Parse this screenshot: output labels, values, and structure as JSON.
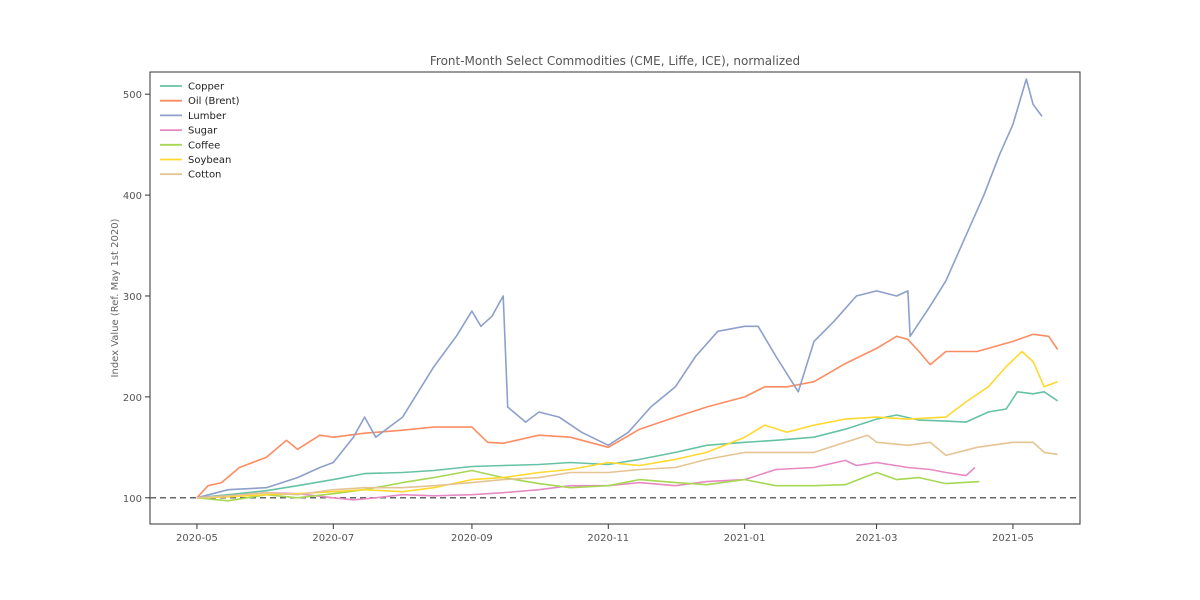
{
  "chart_data": {
    "type": "line",
    "title": "Front-Month Select Commodities (CME, Liffe, ICE), normalized",
    "xlabel": "",
    "ylabel": "Index Value (Ref. May 1st 2020)",
    "xlim": [
      "2020-04-10",
      "2021-05-31"
    ],
    "ylim": [
      74,
      522
    ],
    "x_ticks": [
      "2020-05-01",
      "2020-07-01",
      "2020-09-01",
      "2020-11-01",
      "2021-01-01",
      "2021-03-01",
      "2021-05-01"
    ],
    "x_tick_labels": [
      "2020-05",
      "2020-07",
      "2020-09",
      "2020-11",
      "2021-01",
      "2021-03",
      "2021-05"
    ],
    "y_ticks": [
      100,
      200,
      300,
      400,
      500
    ],
    "y_tick_labels": [
      "100",
      "200",
      "300",
      "400",
      "500"
    ],
    "reference_line": {
      "y": 100,
      "style": "dashed",
      "color": "#666666"
    },
    "legend": {
      "position": "top-left"
    },
    "grid": false,
    "series": [
      {
        "name": "Copper",
        "color": "#66c2a5",
        "points": [
          [
            "2020-05-01",
            100
          ],
          [
            "2020-05-15",
            103
          ],
          [
            "2020-06-01",
            107
          ],
          [
            "2020-06-15",
            112
          ],
          [
            "2020-07-01",
            118
          ],
          [
            "2020-07-15",
            124
          ],
          [
            "2020-08-01",
            125
          ],
          [
            "2020-08-15",
            127
          ],
          [
            "2020-09-01",
            131
          ],
          [
            "2020-09-15",
            132
          ],
          [
            "2020-10-01",
            133
          ],
          [
            "2020-10-15",
            135
          ],
          [
            "2020-11-01",
            133
          ],
          [
            "2020-11-15",
            138
          ],
          [
            "2020-12-01",
            145
          ],
          [
            "2020-12-15",
            152
          ],
          [
            "2021-01-01",
            155
          ],
          [
            "2021-01-15",
            157
          ],
          [
            "2021-02-01",
            160
          ],
          [
            "2021-02-15",
            168
          ],
          [
            "2021-03-01",
            178
          ],
          [
            "2021-03-10",
            182
          ],
          [
            "2021-03-20",
            177
          ],
          [
            "2021-04-01",
            176
          ],
          [
            "2021-04-10",
            175
          ],
          [
            "2021-04-20",
            185
          ],
          [
            "2021-04-28",
            188
          ],
          [
            "2021-05-03",
            205
          ],
          [
            "2021-05-10",
            203
          ],
          [
            "2021-05-15",
            205
          ],
          [
            "2021-05-21",
            196
          ]
        ]
      },
      {
        "name": "Oil (Brent)",
        "color": "#fc8d62",
        "points": [
          [
            "2020-05-01",
            100
          ],
          [
            "2020-05-06",
            112
          ],
          [
            "2020-05-12",
            115
          ],
          [
            "2020-05-20",
            130
          ],
          [
            "2020-06-01",
            140
          ],
          [
            "2020-06-10",
            157
          ],
          [
            "2020-06-15",
            148
          ],
          [
            "2020-06-25",
            162
          ],
          [
            "2020-07-01",
            160
          ],
          [
            "2020-07-15",
            164
          ],
          [
            "2020-08-01",
            167
          ],
          [
            "2020-08-15",
            170
          ],
          [
            "2020-09-01",
            170
          ],
          [
            "2020-09-08",
            155
          ],
          [
            "2020-09-15",
            154
          ],
          [
            "2020-10-01",
            162
          ],
          [
            "2020-10-15",
            160
          ],
          [
            "2020-11-01",
            150
          ],
          [
            "2020-11-15",
            168
          ],
          [
            "2020-12-01",
            180
          ],
          [
            "2020-12-15",
            190
          ],
          [
            "2021-01-01",
            200
          ],
          [
            "2021-01-10",
            210
          ],
          [
            "2021-01-20",
            210
          ],
          [
            "2021-02-01",
            215
          ],
          [
            "2021-02-15",
            233
          ],
          [
            "2021-03-01",
            248
          ],
          [
            "2021-03-10",
            260
          ],
          [
            "2021-03-15",
            257
          ],
          [
            "2021-03-20",
            245
          ],
          [
            "2021-03-25",
            232
          ],
          [
            "2021-04-01",
            245
          ],
          [
            "2021-04-15",
            245
          ],
          [
            "2021-05-01",
            255
          ],
          [
            "2021-05-10",
            262
          ],
          [
            "2021-05-17",
            260
          ],
          [
            "2021-05-21",
            247
          ]
        ]
      },
      {
        "name": "Lumber",
        "color": "#8da0cb",
        "points": [
          [
            "2020-05-01",
            100
          ],
          [
            "2020-05-15",
            108
          ],
          [
            "2020-06-01",
            110
          ],
          [
            "2020-06-15",
            120
          ],
          [
            "2020-06-25",
            130
          ],
          [
            "2020-07-01",
            135
          ],
          [
            "2020-07-10",
            160
          ],
          [
            "2020-07-15",
            180
          ],
          [
            "2020-07-20",
            160
          ],
          [
            "2020-08-01",
            180
          ],
          [
            "2020-08-15",
            230
          ],
          [
            "2020-08-25",
            260
          ],
          [
            "2020-09-01",
            285
          ],
          [
            "2020-09-05",
            270
          ],
          [
            "2020-09-10",
            280
          ],
          [
            "2020-09-15",
            300
          ],
          [
            "2020-09-17",
            190
          ],
          [
            "2020-09-25",
            175
          ],
          [
            "2020-10-01",
            185
          ],
          [
            "2020-10-10",
            180
          ],
          [
            "2020-10-20",
            165
          ],
          [
            "2020-11-01",
            152
          ],
          [
            "2020-11-10",
            165
          ],
          [
            "2020-11-20",
            190
          ],
          [
            "2020-12-01",
            210
          ],
          [
            "2020-12-10",
            240
          ],
          [
            "2020-12-20",
            265
          ],
          [
            "2021-01-01",
            270
          ],
          [
            "2021-01-07",
            270
          ],
          [
            "2021-01-15",
            240
          ],
          [
            "2021-01-25",
            205
          ],
          [
            "2021-02-01",
            255
          ],
          [
            "2021-02-10",
            275
          ],
          [
            "2021-02-20",
            300
          ],
          [
            "2021-03-01",
            305
          ],
          [
            "2021-03-10",
            300
          ],
          [
            "2021-03-15",
            305
          ],
          [
            "2021-03-16",
            260
          ],
          [
            "2021-03-25",
            290
          ],
          [
            "2021-04-01",
            315
          ],
          [
            "2021-04-10",
            360
          ],
          [
            "2021-04-18",
            400
          ],
          [
            "2021-04-25",
            440
          ],
          [
            "2021-05-01",
            470
          ],
          [
            "2021-05-07",
            515
          ],
          [
            "2021-05-10",
            490
          ],
          [
            "2021-05-14",
            478
          ]
        ]
      },
      {
        "name": "Sugar",
        "color": "#e78ac3",
        "points": [
          [
            "2020-05-01",
            100
          ],
          [
            "2020-05-15",
            102
          ],
          [
            "2020-06-01",
            105
          ],
          [
            "2020-06-15",
            104
          ],
          [
            "2020-07-01",
            100
          ],
          [
            "2020-07-10",
            98
          ],
          [
            "2020-07-20",
            100
          ],
          [
            "2020-08-01",
            103
          ],
          [
            "2020-08-15",
            102
          ],
          [
            "2020-09-01",
            103
          ],
          [
            "2020-09-15",
            105
          ],
          [
            "2020-10-01",
            108
          ],
          [
            "2020-10-15",
            112
          ],
          [
            "2020-11-01",
            112
          ],
          [
            "2020-11-15",
            115
          ],
          [
            "2020-12-01",
            112
          ],
          [
            "2020-12-15",
            116
          ],
          [
            "2021-01-01",
            118
          ],
          [
            "2021-01-15",
            128
          ],
          [
            "2021-02-01",
            130
          ],
          [
            "2021-02-15",
            137
          ],
          [
            "2021-02-20",
            132
          ],
          [
            "2021-03-01",
            135
          ],
          [
            "2021-03-15",
            130
          ],
          [
            "2021-03-25",
            128
          ],
          [
            "2021-04-01",
            125
          ],
          [
            "2021-04-10",
            122
          ],
          [
            "2021-04-14",
            130
          ]
        ]
      },
      {
        "name": "Coffee",
        "color": "#a6d854",
        "points": [
          [
            "2020-05-01",
            100
          ],
          [
            "2020-05-15",
            97
          ],
          [
            "2020-06-01",
            103
          ],
          [
            "2020-06-15",
            100
          ],
          [
            "2020-07-01",
            104
          ],
          [
            "2020-07-15",
            108
          ],
          [
            "2020-08-01",
            115
          ],
          [
            "2020-08-15",
            120
          ],
          [
            "2020-09-01",
            127
          ],
          [
            "2020-09-15",
            120
          ],
          [
            "2020-10-01",
            114
          ],
          [
            "2020-10-15",
            110
          ],
          [
            "2020-11-01",
            112
          ],
          [
            "2020-11-15",
            118
          ],
          [
            "2020-12-01",
            115
          ],
          [
            "2020-12-15",
            113
          ],
          [
            "2021-01-01",
            118
          ],
          [
            "2021-01-15",
            112
          ],
          [
            "2021-02-01",
            112
          ],
          [
            "2021-02-15",
            113
          ],
          [
            "2021-03-01",
            125
          ],
          [
            "2021-03-10",
            118
          ],
          [
            "2021-03-20",
            120
          ],
          [
            "2021-04-01",
            114
          ],
          [
            "2021-04-16",
            116
          ]
        ]
      },
      {
        "name": "Soybean",
        "color": "#ffd92f",
        "points": [
          [
            "2020-05-01",
            100
          ],
          [
            "2020-05-15",
            101
          ],
          [
            "2020-06-01",
            103
          ],
          [
            "2020-06-15",
            104
          ],
          [
            "2020-07-01",
            106
          ],
          [
            "2020-07-15",
            108
          ],
          [
            "2020-08-01",
            106
          ],
          [
            "2020-08-15",
            110
          ],
          [
            "2020-09-01",
            118
          ],
          [
            "2020-09-15",
            120
          ],
          [
            "2020-10-01",
            125
          ],
          [
            "2020-10-15",
            128
          ],
          [
            "2020-11-01",
            135
          ],
          [
            "2020-11-15",
            132
          ],
          [
            "2020-12-01",
            138
          ],
          [
            "2020-12-15",
            145
          ],
          [
            "2021-01-01",
            160
          ],
          [
            "2021-01-10",
            172
          ],
          [
            "2021-01-20",
            165
          ],
          [
            "2021-02-01",
            172
          ],
          [
            "2021-02-15",
            178
          ],
          [
            "2021-03-01",
            180
          ],
          [
            "2021-03-15",
            178
          ],
          [
            "2021-04-01",
            180
          ],
          [
            "2021-04-10",
            195
          ],
          [
            "2021-04-20",
            210
          ],
          [
            "2021-04-28",
            230
          ],
          [
            "2021-05-05",
            245
          ],
          [
            "2021-05-10",
            235
          ],
          [
            "2021-05-15",
            210
          ],
          [
            "2021-05-21",
            215
          ]
        ]
      },
      {
        "name": "Cotton",
        "color": "#e5c494",
        "points": [
          [
            "2020-05-01",
            100
          ],
          [
            "2020-05-15",
            102
          ],
          [
            "2020-06-01",
            105
          ],
          [
            "2020-06-15",
            103
          ],
          [
            "2020-07-01",
            108
          ],
          [
            "2020-07-15",
            110
          ],
          [
            "2020-08-01",
            110
          ],
          [
            "2020-08-15",
            112
          ],
          [
            "2020-09-01",
            115
          ],
          [
            "2020-09-15",
            118
          ],
          [
            "2020-10-01",
            120
          ],
          [
            "2020-10-15",
            125
          ],
          [
            "2020-11-01",
            125
          ],
          [
            "2020-11-15",
            128
          ],
          [
            "2020-12-01",
            130
          ],
          [
            "2020-12-15",
            138
          ],
          [
            "2021-01-01",
            145
          ],
          [
            "2021-01-15",
            145
          ],
          [
            "2021-02-01",
            145
          ],
          [
            "2021-02-15",
            155
          ],
          [
            "2021-02-25",
            162
          ],
          [
            "2021-03-01",
            155
          ],
          [
            "2021-03-15",
            152
          ],
          [
            "2021-03-25",
            155
          ],
          [
            "2021-04-01",
            142
          ],
          [
            "2021-04-15",
            150
          ],
          [
            "2021-05-01",
            155
          ],
          [
            "2021-05-10",
            155
          ],
          [
            "2021-05-15",
            145
          ],
          [
            "2021-05-21",
            143
          ]
        ]
      }
    ]
  }
}
